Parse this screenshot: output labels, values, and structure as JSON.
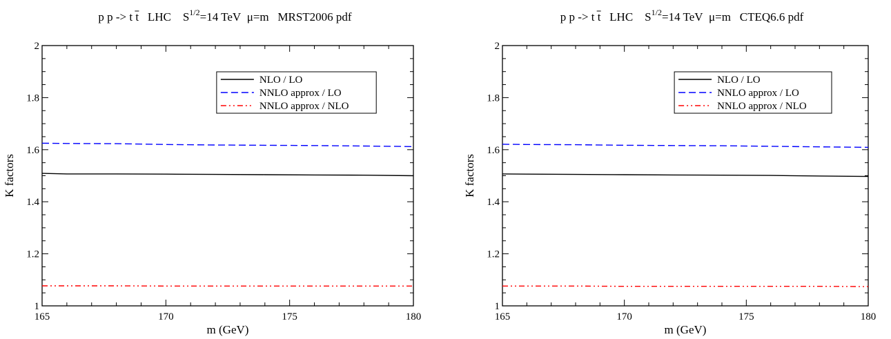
{
  "chart_data": [
    {
      "type": "line",
      "title_prefix": "p p -> t t",
      "title_collider": "LHC",
      "title_energy_base": "S",
      "title_energy_sup": "1/2",
      "title_energy_rest": "=14 TeV",
      "title_scale": "μ=m",
      "title_pdf": "MRST2006 pdf",
      "xlabel": "m (GeV)",
      "ylabel": "K factors",
      "xlim": [
        165,
        180
      ],
      "ylim": [
        1,
        2
      ],
      "xticks": [
        165,
        170,
        175,
        180
      ],
      "yticks": [
        1,
        1.2,
        1.4,
        1.6,
        1.8,
        2
      ],
      "grid": false,
      "legend_position": "top-right",
      "series": [
        {
          "name": "NLO / LO",
          "color": "#000000",
          "style": "solid",
          "x": [
            165,
            166,
            168,
            170,
            172,
            174,
            176,
            178,
            180
          ],
          "y": [
            1.509,
            1.507,
            1.507,
            1.506,
            1.505,
            1.504,
            1.503,
            1.502,
            1.5
          ]
        },
        {
          "name": "NNLO approx / LO",
          "color": "#0000ff",
          "style": "dashed",
          "x": [
            165,
            166,
            168,
            170,
            172,
            174,
            176,
            178,
            180
          ],
          "y": [
            1.625,
            1.624,
            1.623,
            1.62,
            1.618,
            1.617,
            1.616,
            1.614,
            1.612
          ]
        },
        {
          "name": "NNLO approx / NLO",
          "color": "#ff0000",
          "style": "dashdotdot",
          "x": [
            165,
            166,
            168,
            170,
            172,
            174,
            176,
            178,
            180
          ],
          "y": [
            1.077,
            1.077,
            1.077,
            1.076,
            1.076,
            1.076,
            1.076,
            1.076,
            1.076
          ]
        }
      ]
    },
    {
      "type": "line",
      "title_prefix": "p p -> t t",
      "title_collider": "LHC",
      "title_energy_base": "S",
      "title_energy_sup": "1/2",
      "title_energy_rest": "=14 TeV",
      "title_scale": "μ=m",
      "title_pdf": "CTEQ6.6 pdf",
      "xlabel": "m (GeV)",
      "ylabel": "K factors",
      "xlim": [
        165,
        180
      ],
      "ylim": [
        1,
        2
      ],
      "xticks": [
        165,
        170,
        175,
        180
      ],
      "yticks": [
        1,
        1.2,
        1.4,
        1.6,
        1.8,
        2
      ],
      "grid": false,
      "legend_position": "top-right",
      "series": [
        {
          "name": "NLO / LO",
          "color": "#000000",
          "style": "solid",
          "x": [
            165,
            166,
            168,
            170,
            172,
            174,
            176,
            178,
            180
          ],
          "y": [
            1.507,
            1.506,
            1.505,
            1.504,
            1.503,
            1.502,
            1.501,
            1.499,
            1.497
          ]
        },
        {
          "name": "NNLO approx / LO",
          "color": "#0000ff",
          "style": "dashed",
          "x": [
            165,
            166,
            168,
            170,
            172,
            174,
            176,
            178,
            180
          ],
          "y": [
            1.621,
            1.62,
            1.619,
            1.617,
            1.616,
            1.615,
            1.613,
            1.611,
            1.609
          ]
        },
        {
          "name": "NNLO approx / NLO",
          "color": "#ff0000",
          "style": "dashdotdot",
          "x": [
            165,
            166,
            168,
            170,
            172,
            174,
            176,
            178,
            180
          ],
          "y": [
            1.076,
            1.076,
            1.076,
            1.075,
            1.075,
            1.075,
            1.075,
            1.075,
            1.074
          ]
        }
      ]
    }
  ]
}
